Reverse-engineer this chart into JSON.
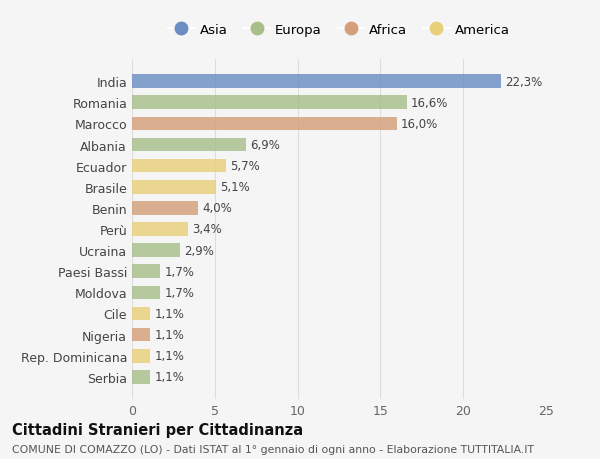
{
  "countries": [
    "India",
    "Romania",
    "Marocco",
    "Albania",
    "Ecuador",
    "Brasile",
    "Benin",
    "Perù",
    "Ucraina",
    "Paesi Bassi",
    "Moldova",
    "Cile",
    "Nigeria",
    "Rep. Dominicana",
    "Serbia"
  ],
  "values": [
    22.3,
    16.6,
    16.0,
    6.9,
    5.7,
    5.1,
    4.0,
    3.4,
    2.9,
    1.7,
    1.7,
    1.1,
    1.1,
    1.1,
    1.1
  ],
  "labels": [
    "22,3%",
    "16,6%",
    "16,0%",
    "6,9%",
    "5,7%",
    "5,1%",
    "4,0%",
    "3,4%",
    "2,9%",
    "1,7%",
    "1,7%",
    "1,1%",
    "1,1%",
    "1,1%",
    "1,1%"
  ],
  "continents": [
    "Asia",
    "Europa",
    "Africa",
    "Europa",
    "America",
    "America",
    "Africa",
    "America",
    "Europa",
    "Europa",
    "Europa",
    "America",
    "Africa",
    "America",
    "Europa"
  ],
  "colors": {
    "Asia": "#6b8dc4",
    "Europa": "#a8bf8a",
    "Africa": "#d4a07a",
    "America": "#e8d07a"
  },
  "legend_order": [
    "Asia",
    "Europa",
    "Africa",
    "America"
  ],
  "title": "Cittadini Stranieri per Cittadinanza",
  "subtitle": "COMUNE DI COMAZZO (LO) - Dati ISTAT al 1° gennaio di ogni anno - Elaborazione TUTTITALIA.IT",
  "xlim": [
    0,
    25
  ],
  "xticks": [
    0,
    5,
    10,
    15,
    20,
    25
  ],
  "bg_color": "#f5f5f5",
  "grid_color": "#dddddd"
}
